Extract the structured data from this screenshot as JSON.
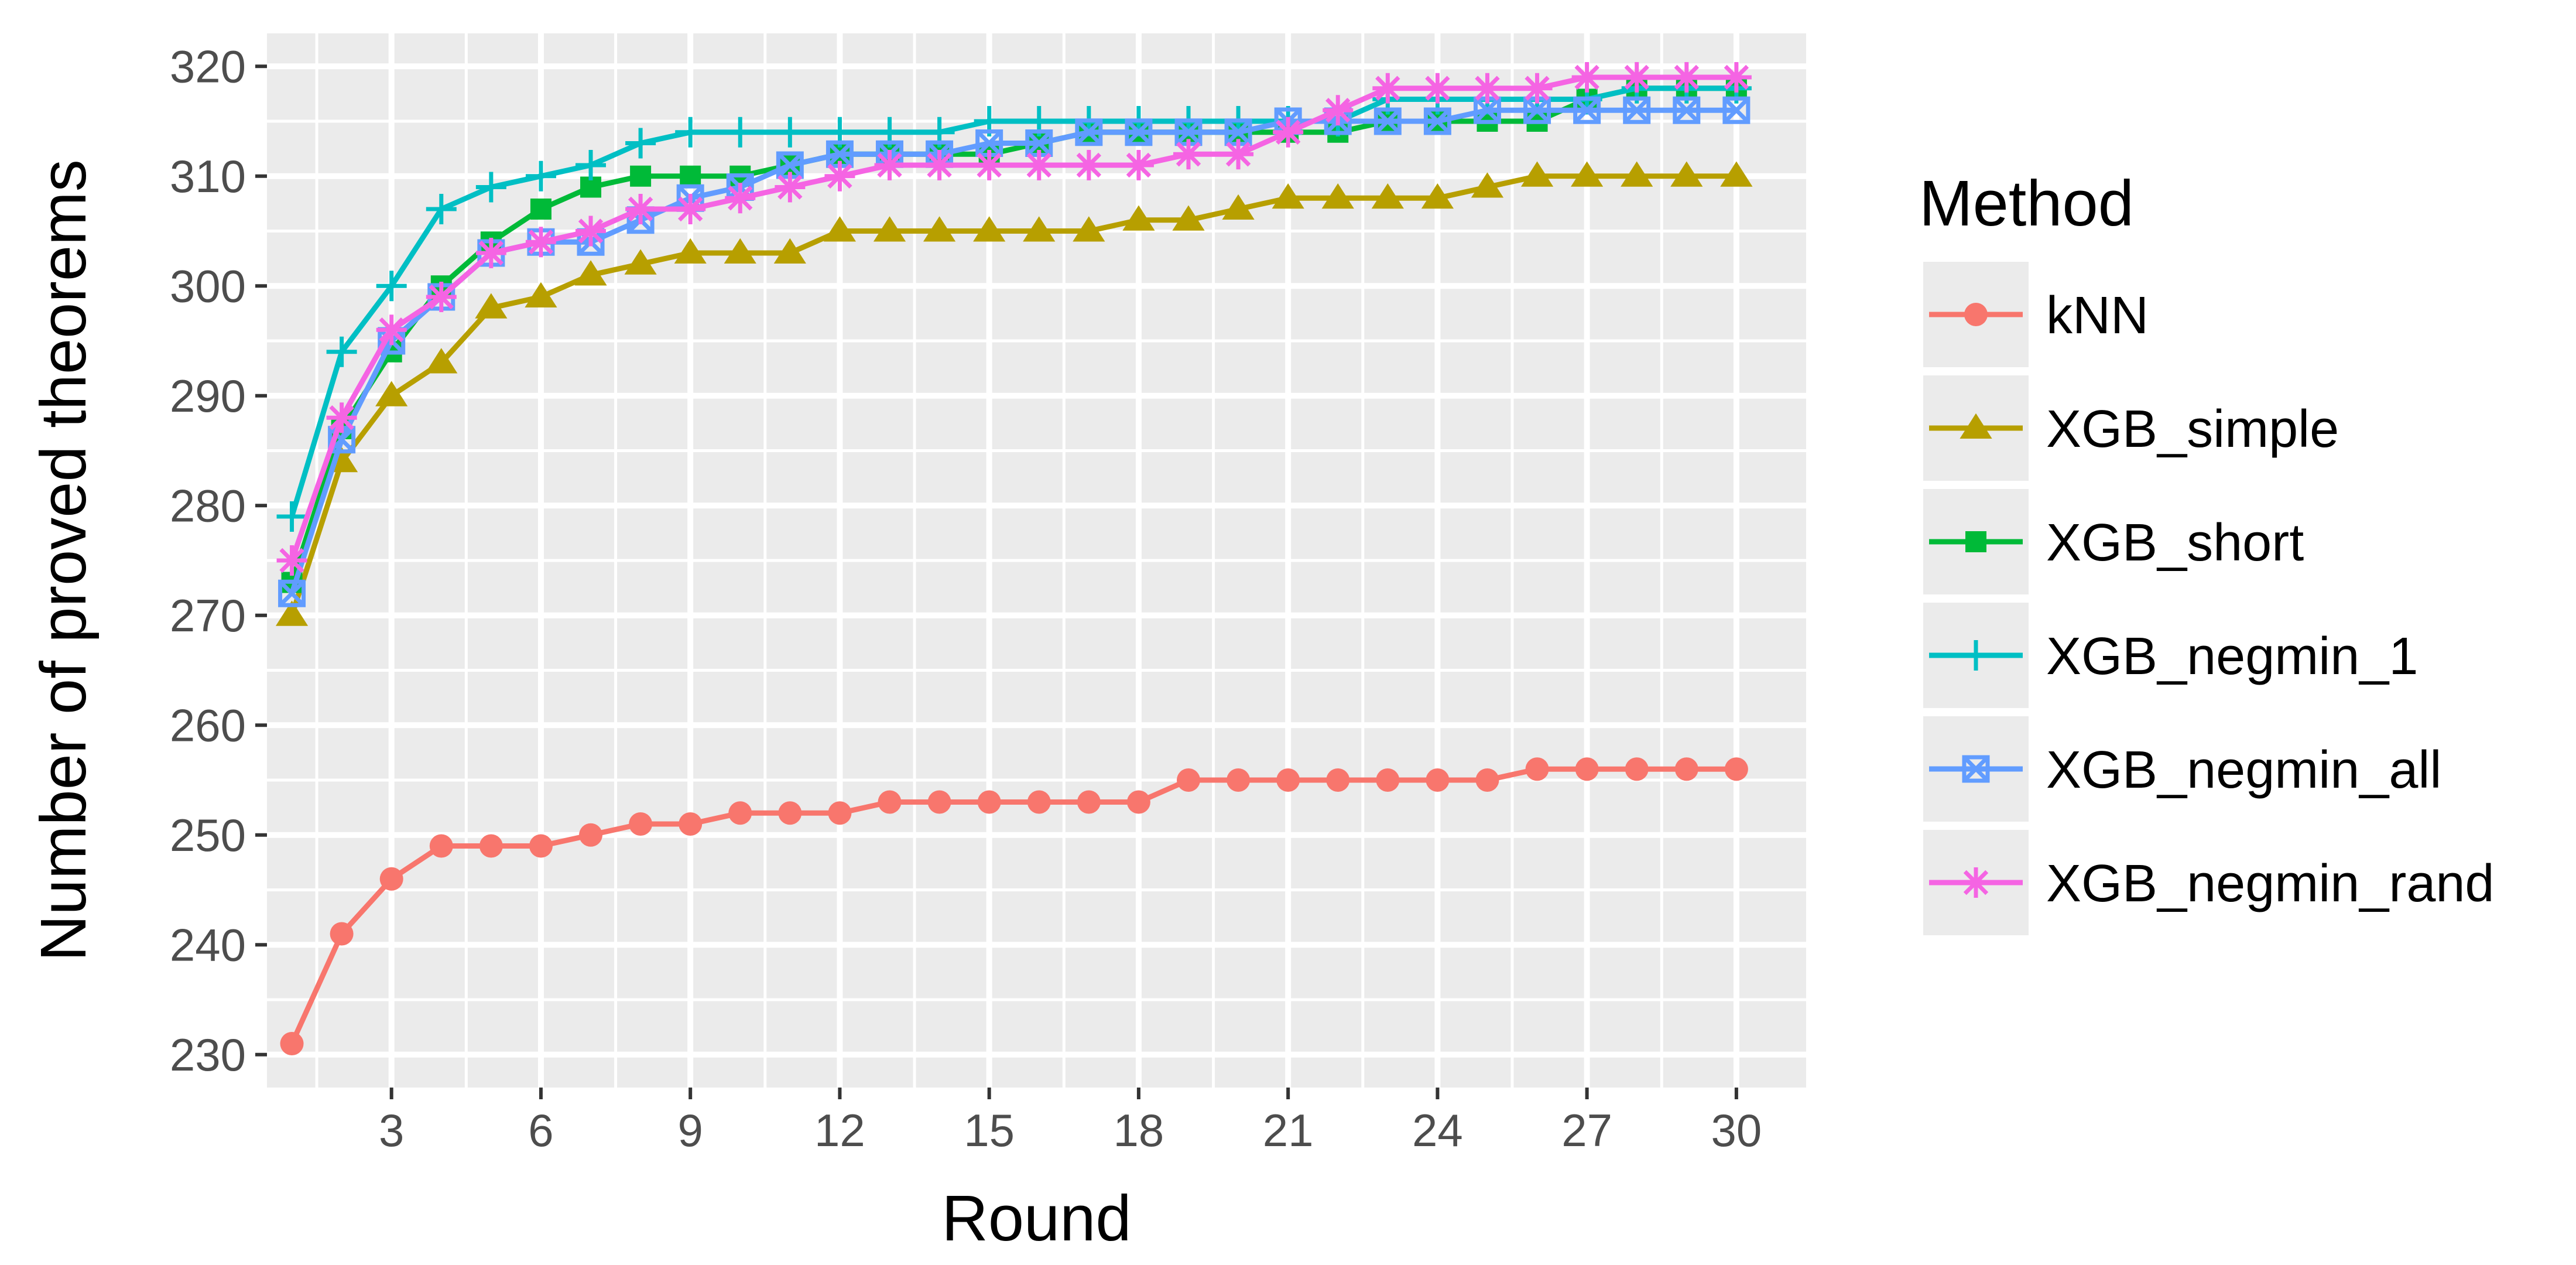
{
  "chart_data": {
    "type": "line",
    "xlabel": "Round",
    "ylabel": "Number of proved theorems",
    "xlim": [
      0.5,
      31.4
    ],
    "ylim": [
      227,
      323
    ],
    "x_ticks": [
      3,
      6,
      9,
      12,
      15,
      18,
      21,
      24,
      27,
      30
    ],
    "y_ticks": [
      230,
      240,
      250,
      260,
      270,
      280,
      290,
      300,
      310,
      320
    ],
    "grid": true,
    "legend_title": "Method",
    "legend_placement": "right",
    "x": [
      1,
      2,
      3,
      4,
      5,
      6,
      7,
      8,
      9,
      10,
      11,
      12,
      13,
      14,
      15,
      16,
      17,
      18,
      19,
      20,
      21,
      22,
      23,
      24,
      25,
      26,
      27,
      28,
      29,
      30
    ],
    "series": [
      {
        "name": "kNN",
        "color": "#F8766D",
        "marker": "circle",
        "values": [
          231,
          241,
          246,
          249,
          249,
          249,
          250,
          251,
          251,
          252,
          252,
          252,
          253,
          253,
          253,
          253,
          253,
          253,
          255,
          255,
          255,
          255,
          255,
          255,
          255,
          256,
          256,
          256,
          256,
          256
        ]
      },
      {
        "name": "XGB_simple",
        "color": "#B79F00",
        "marker": "triangle",
        "values": [
          270,
          284,
          290,
          293,
          298,
          299,
          301,
          302,
          303,
          303,
          303,
          305,
          305,
          305,
          305,
          305,
          305,
          306,
          306,
          307,
          308,
          308,
          308,
          308,
          309,
          310,
          310,
          310,
          310,
          310
        ]
      },
      {
        "name": "XGB_short",
        "color": "#00BA38",
        "marker": "square",
        "values": [
          273,
          287,
          294,
          300,
          304,
          307,
          309,
          310,
          310,
          310,
          311,
          312,
          312,
          312,
          312,
          313,
          314,
          314,
          314,
          314,
          314,
          314,
          315,
          315,
          315,
          315,
          317,
          318,
          318,
          318
        ]
      },
      {
        "name": "XGB_negmin_1",
        "color": "#00BFC4",
        "marker": "plus",
        "values": [
          279,
          294,
          300,
          307,
          309,
          310,
          311,
          313,
          314,
          314,
          314,
          314,
          314,
          314,
          315,
          315,
          315,
          315,
          315,
          315,
          315,
          315,
          317,
          317,
          317,
          317,
          317,
          318,
          318,
          318
        ]
      },
      {
        "name": "XGB_negmin_all",
        "color": "#619CFF",
        "marker": "square-x",
        "values": [
          272,
          286,
          295,
          299,
          303,
          304,
          304,
          306,
          308,
          309,
          311,
          312,
          312,
          312,
          313,
          313,
          314,
          314,
          314,
          314,
          315,
          315,
          315,
          315,
          316,
          316,
          316,
          316,
          316,
          316
        ]
      },
      {
        "name": "XGB_negmin_rand",
        "color": "#F564E3",
        "marker": "asterisk",
        "values": [
          275,
          288,
          296,
          299,
          303,
          304,
          305,
          307,
          307,
          308,
          309,
          310,
          311,
          311,
          311,
          311,
          311,
          311,
          312,
          312,
          314,
          316,
          318,
          318,
          318,
          318,
          319,
          319,
          319,
          319
        ]
      }
    ]
  }
}
